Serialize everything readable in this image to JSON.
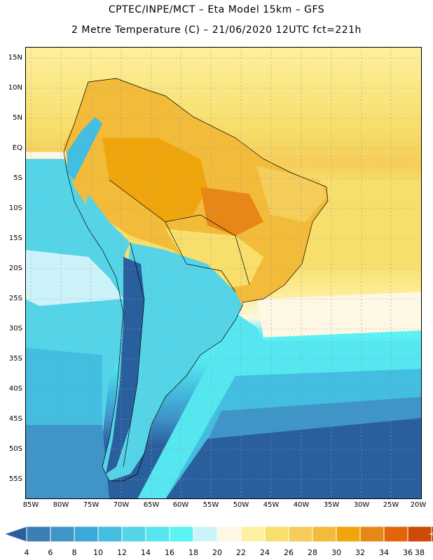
{
  "header": {
    "line1": "CPTEC/INPE/MCT –  Eta Model 15km – GFS",
    "line2": "2 Metre Temperature (C) – 21/06/2020 12UTC fct=221h"
  },
  "map": {
    "lat_labels": [
      "15N",
      "10N",
      "5N",
      "EQ",
      "5S",
      "10S",
      "15S",
      "20S",
      "25S",
      "30S",
      "35S",
      "40S",
      "45S",
      "50S",
      "55S"
    ],
    "lon_labels": [
      "85W",
      "80W",
      "75W",
      "70W",
      "65W",
      "60W",
      "55W",
      "50W",
      "45W",
      "40W",
      "35W",
      "30W",
      "25W",
      "20W"
    ]
  },
  "colorbar": {
    "labels": [
      "4",
      "6",
      "8",
      "10",
      "12",
      "14",
      "16",
      "18",
      "20",
      "22",
      "24",
      "26",
      "28",
      "30",
      "32",
      "34",
      "36",
      "38"
    ],
    "colors": [
      "#2a5f9e",
      "#3d7fb5",
      "#3f94c8",
      "#3aa8d8",
      "#43bde0",
      "#55d4e8",
      "#55e6ef",
      "#5cf3f3",
      "#cdf3fa",
      "#fdf7e4",
      "#fdf0a0",
      "#f8df6c",
      "#f5cd5a",
      "#f2bb3a",
      "#eea60c",
      "#e98716",
      "#e2650a",
      "#cf4a06",
      "#b43606",
      "#8e2704"
    ]
  }
}
